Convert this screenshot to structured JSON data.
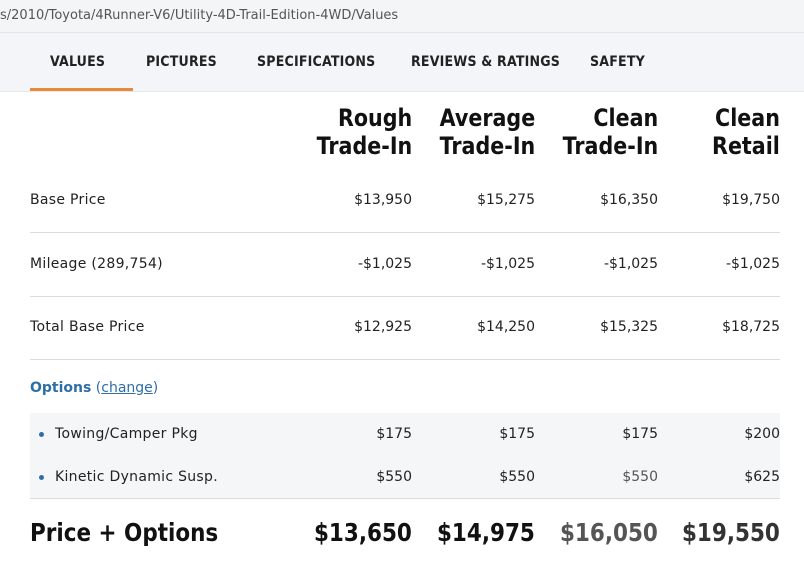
{
  "url": "s/2010/Toyota/4Runner-V6/Utility-4D-Trail-Edition-4WD/Values",
  "tabs": [
    {
      "label": "VALUES",
      "active": true
    },
    {
      "label": "PICTURES"
    },
    {
      "label": "SPECIFICATIONS"
    },
    {
      "label": "REVIEWS & RATINGS"
    },
    {
      "label": "SAFETY"
    }
  ],
  "columns": [
    {
      "line1": "Rough",
      "line2": "Trade-In"
    },
    {
      "line1": "Average",
      "line2": "Trade-In"
    },
    {
      "line1": "Clean",
      "line2": "Trade-In"
    },
    {
      "line1": "Clean",
      "line2": "Retail"
    }
  ],
  "rows": [
    {
      "label": "Base Price",
      "values": [
        "$13,950",
        "$15,275",
        "$16,350",
        "$19,750"
      ]
    },
    {
      "label": "Mileage (289,754)",
      "values": [
        "-$1,025",
        "-$1,025",
        "-$1,025",
        "-$1,025"
      ]
    },
    {
      "label": "Total Base Price",
      "values": [
        "$12,925",
        "$14,250",
        "$15,325",
        "$18,725"
      ]
    }
  ],
  "options": {
    "title": "Options",
    "open_paren": "(",
    "change_label": "change",
    "close_paren": ")",
    "items": [
      {
        "label": "Towing/Camper Pkg",
        "values": [
          "$175",
          "$175",
          "$175",
          "$200"
        ]
      },
      {
        "label": "Kinetic Dynamic Susp.",
        "values": [
          "$550",
          "$550",
          "$550",
          "$625"
        ]
      }
    ]
  },
  "total": {
    "label": "Price + Options",
    "values": [
      "$13,650",
      "$14,975",
      "$16,050",
      "$19,550"
    ]
  },
  "colors": {
    "accent_tab": "#e8893b",
    "link": "#2e6fa7",
    "faded_value": "#555555"
  }
}
